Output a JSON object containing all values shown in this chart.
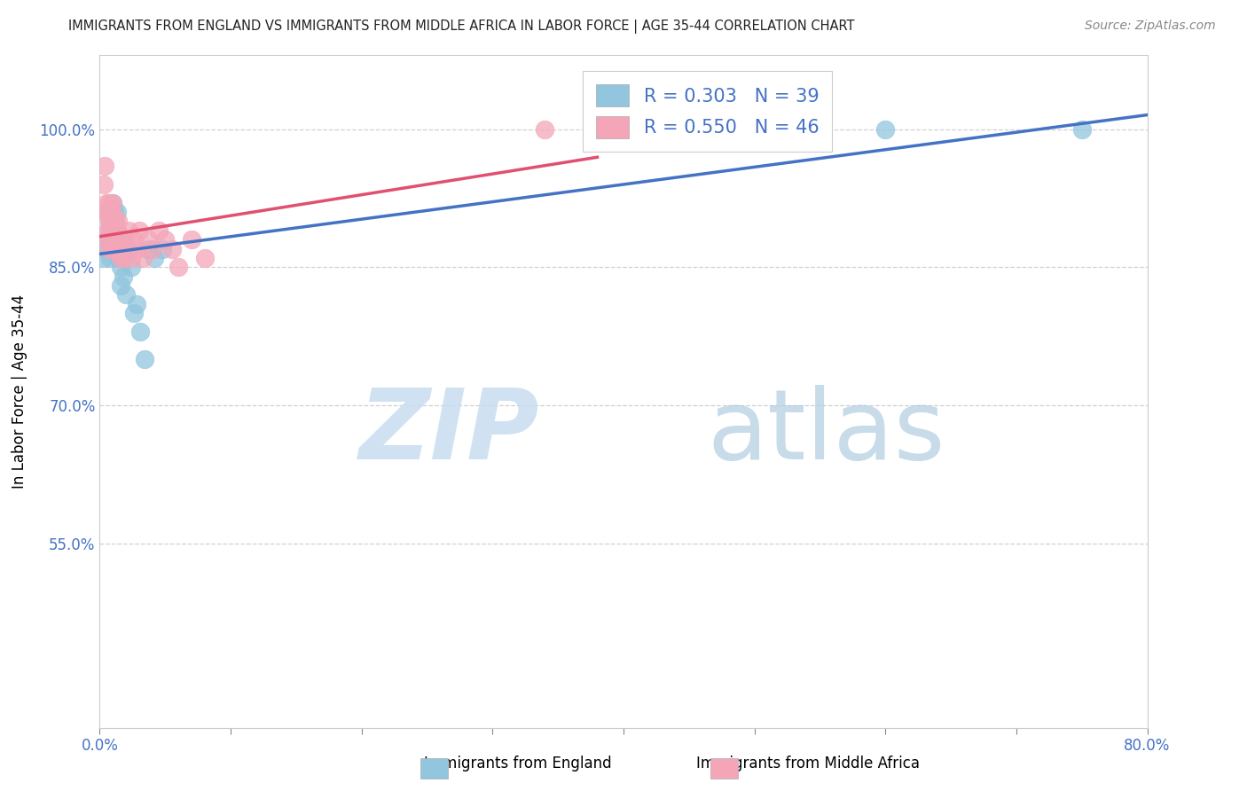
{
  "title": "IMMIGRANTS FROM ENGLAND VS IMMIGRANTS FROM MIDDLE AFRICA IN LABOR FORCE | AGE 35-44 CORRELATION CHART",
  "source": "Source: ZipAtlas.com",
  "ylabel": "In Labor Force | Age 35-44",
  "xlim": [
    0.0,
    0.8
  ],
  "ylim": [
    0.35,
    1.08
  ],
  "xticks": [
    0.0,
    0.1,
    0.2,
    0.3,
    0.4,
    0.5,
    0.6,
    0.7,
    0.8
  ],
  "yticks": [
    0.55,
    0.7,
    0.85,
    1.0
  ],
  "ytick_labels": [
    "55.0%",
    "70.0%",
    "85.0%",
    "100.0%"
  ],
  "xtick_labels": [
    "0.0%",
    "",
    "",
    "",
    "",
    "",
    "",
    "",
    "80.0%"
  ],
  "grid_color": "#d0d0d0",
  "legend_england_R": "0.303",
  "legend_england_N": "39",
  "legend_africa_R": "0.550",
  "legend_africa_N": "46",
  "color_england": "#92c5de",
  "color_africa": "#f4a6b8",
  "trendline_england_color": "#4472c4",
  "trendline_africa_color": "#e05070",
  "england_x": [
    0.003,
    0.005,
    0.006,
    0.007,
    0.007,
    0.008,
    0.008,
    0.008,
    0.009,
    0.009,
    0.009,
    0.01,
    0.01,
    0.01,
    0.011,
    0.011,
    0.012,
    0.012,
    0.013,
    0.013,
    0.013,
    0.014,
    0.014,
    0.015,
    0.016,
    0.016,
    0.018,
    0.02,
    0.022,
    0.024,
    0.026,
    0.028,
    0.031,
    0.034,
    0.037,
    0.042,
    0.048,
    0.6,
    0.75
  ],
  "england_y": [
    0.86,
    0.87,
    0.88,
    0.89,
    0.91,
    0.9,
    0.88,
    0.86,
    0.89,
    0.91,
    0.87,
    0.9,
    0.92,
    0.88,
    0.91,
    0.89,
    0.88,
    0.9,
    0.87,
    0.89,
    0.91,
    0.87,
    0.86,
    0.88,
    0.83,
    0.85,
    0.84,
    0.82,
    0.87,
    0.85,
    0.8,
    0.81,
    0.78,
    0.75,
    0.87,
    0.86,
    0.87,
    1.0,
    1.0
  ],
  "africa_x": [
    0.003,
    0.004,
    0.004,
    0.005,
    0.005,
    0.006,
    0.006,
    0.007,
    0.007,
    0.007,
    0.008,
    0.008,
    0.009,
    0.009,
    0.01,
    0.01,
    0.01,
    0.011,
    0.011,
    0.012,
    0.012,
    0.013,
    0.013,
    0.014,
    0.014,
    0.015,
    0.016,
    0.017,
    0.018,
    0.019,
    0.02,
    0.022,
    0.024,
    0.026,
    0.028,
    0.03,
    0.033,
    0.037,
    0.04,
    0.045,
    0.05,
    0.055,
    0.06,
    0.07,
    0.08,
    0.34
  ],
  "africa_y": [
    0.94,
    0.91,
    0.96,
    0.88,
    0.92,
    0.89,
    0.91,
    0.92,
    0.87,
    0.9,
    0.88,
    0.91,
    0.89,
    0.91,
    0.88,
    0.9,
    0.92,
    0.87,
    0.89,
    0.88,
    0.9,
    0.87,
    0.89,
    0.88,
    0.9,
    0.87,
    0.86,
    0.88,
    0.86,
    0.88,
    0.87,
    0.89,
    0.86,
    0.88,
    0.87,
    0.89,
    0.86,
    0.88,
    0.87,
    0.89,
    0.88,
    0.87,
    0.85,
    0.88,
    0.86,
    1.0
  ],
  "bottom_legend_england": "Immigrants from England",
  "bottom_legend_africa": "Immigrants from Middle Africa",
  "title_color": "#222222",
  "axis_color": "#4472c4",
  "legend_text_color": "#4472c4",
  "watermark_zip_color": "#c8ddf0",
  "watermark_atlas_color": "#b0cce0"
}
